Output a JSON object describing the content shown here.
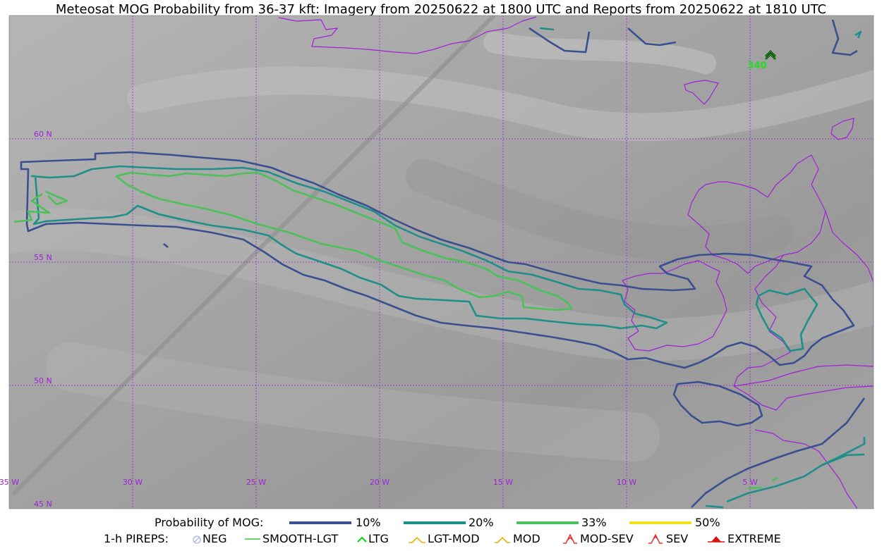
{
  "title": "Meteosat MOG Probability from 36-37 kft: Imagery from 20250622 at 1800 UTC and Reports from 20250622 at 1810 UTC",
  "lat_labels": [
    "60 N",
    "55 N",
    "50 N",
    "45 N"
  ],
  "lon_labels": [
    "35 W",
    "30 W",
    "25 W",
    "20 W",
    "15 W",
    "10 W",
    "5 W"
  ],
  "report": {
    "altitude_label": "340",
    "type": "LTG"
  },
  "legend": {
    "prob_title": "Probability of MOG:",
    "prob_items": [
      {
        "label": "10%",
        "color": "#3a4f8f"
      },
      {
        "label": "20%",
        "color": "#1f8f8a"
      },
      {
        "label": "33%",
        "color": "#4cc05a"
      },
      {
        "label": "50%",
        "color": "#f3e41a"
      }
    ],
    "pirep_title": "1-h PIREPS:",
    "pirep_items": [
      {
        "label": "NEG",
        "color": "#aab0f0",
        "icon": "neg-icon"
      },
      {
        "label": "SMOOTH-LGT",
        "color": "#33cc33",
        "icon": "smooth-lgt-icon"
      },
      {
        "label": "LTG",
        "color": "#00dd00",
        "icon": "ltg-icon"
      },
      {
        "label": "LGT-MOD",
        "color": "#f0b000",
        "icon": "lgt-mod-icon"
      },
      {
        "label": "MOD",
        "color": "#f0b000",
        "icon": "mod-icon"
      },
      {
        "label": "MOD-SEV",
        "color": "#e53030",
        "icon": "mod-sev-icon"
      },
      {
        "label": "SEV",
        "color": "#e53030",
        "icon": "sev-icon"
      },
      {
        "label": "EXTREME",
        "color": "#e01010",
        "icon": "extreme-icon"
      }
    ]
  },
  "colors": {
    "coastline": "#a020d8",
    "grid": "#a020d8",
    "imagery_base": "#a8a8a8"
  }
}
